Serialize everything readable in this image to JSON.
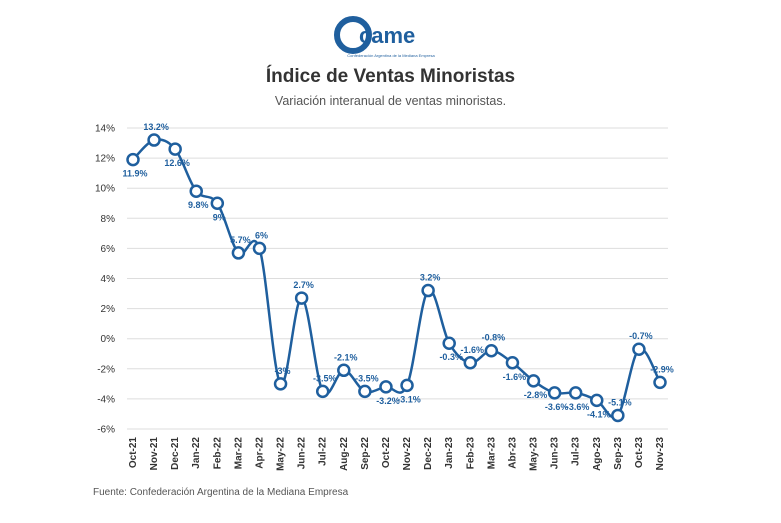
{
  "header": {
    "logo_text": "came",
    "logo_subtitle": "Confederación Argentina de la Mediana Empresa",
    "title": "Índice de Ventas Minoristas",
    "subtitle": "Variación interanual de ventas minoristas."
  },
  "footer": {
    "source": "Fuente: Confederación Argentina de la Mediana Empresa"
  },
  "colors": {
    "line": "#1f5f9e",
    "brand": "#1f5f9e",
    "grid": "#dddddd"
  },
  "chart_data": {
    "type": "line",
    "title": "Índice de Ventas Minoristas",
    "subtitle": "Variación interanual de ventas minoristas.",
    "categories": [
      "Oct-21",
      "Nov-21",
      "Dec-21",
      "Jan-22",
      "Feb-22",
      "Mar-22",
      "Apr-22",
      "May-22",
      "Jun-22",
      "Jul-22",
      "Aug-22",
      "Sep-22",
      "Oct-22",
      "Nov-22",
      "Dec-22",
      "Jan-23",
      "Feb-23",
      "Mar-23",
      "Abr-23",
      "May-23",
      "Jun-23",
      "Jul-23",
      "Ago-23",
      "Sep-23",
      "Oct-23",
      "Nov-23"
    ],
    "series": [
      {
        "values": [
          11.9,
          13.2,
          12.6,
          9.8,
          9,
          5.7,
          6,
          -3,
          2.7,
          -3.5,
          -2.1,
          -3.5,
          -3.2,
          -3.1,
          3.2,
          -0.3,
          -1.6,
          -0.8,
          -1.6,
          -2.8,
          -3.6,
          -3.6,
          -4.1,
          -5.1,
          -0.7,
          -2.9
        ]
      }
    ],
    "data_labels": [
      "11.9%",
      "13.2%",
      "12.6%",
      "9.8%",
      "9%",
      "5.7%",
      "6%",
      "-3%",
      "2.7%",
      "-3.5%",
      "-2.1%",
      "-3.5%",
      "-3.2%",
      "-3.1%",
      "3.2%",
      "-0.3%",
      "-1.6%",
      "-0.8%",
      "-1.6%",
      "-2.8%",
      "-3.6%",
      "-3.6%",
      "-4.1%",
      "-5.1%",
      "-0.7%",
      "-2.9%"
    ],
    "y_ticks": [
      14,
      12,
      10,
      8,
      6,
      4,
      2,
      0,
      -2,
      -4,
      -6
    ],
    "y_tick_labels": [
      "14%",
      "12%",
      "10%",
      "8%",
      "6%",
      "4%",
      "2%",
      "0%",
      "-2%",
      "-4%",
      "-6%"
    ],
    "ylim": [
      -6,
      14
    ],
    "grid": "horizontal",
    "legend": "none",
    "xlabel": "",
    "ylabel": ""
  }
}
